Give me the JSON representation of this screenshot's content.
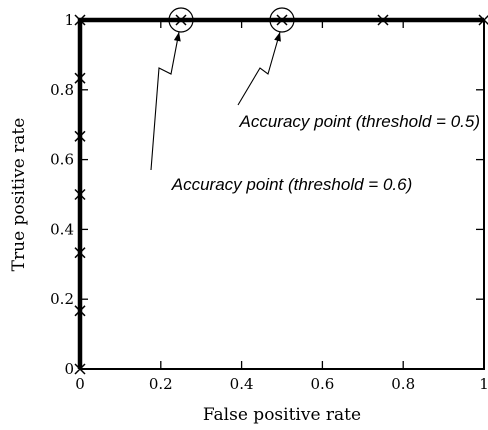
{
  "chart_data": {
    "type": "line",
    "title": "",
    "xlabel": "False positive rate",
    "ylabel": "True positive rate",
    "xlim": [
      0,
      1
    ],
    "ylim": [
      0,
      1
    ],
    "xticks": [
      "0",
      "0.2",
      "0.4",
      "0.6",
      "0.8",
      "1"
    ],
    "yticks": [
      "0",
      "0.2",
      "0.4",
      "0.6",
      "0.8",
      "1"
    ],
    "grid": false,
    "legend": "none",
    "series": [
      {
        "color": "#000000",
        "marker": "x",
        "x": [
          0,
          0,
          0,
          0,
          0,
          0,
          0,
          0.25,
          0.5,
          0.75,
          1
        ],
        "y": [
          0,
          0.1667,
          0.3333,
          0.5,
          0.6667,
          0.8333,
          1,
          1,
          1,
          1,
          1
        ]
      }
    ],
    "annotations": [
      {
        "text": "Accuracy point (threshold = 0.5)",
        "x": 0.5,
        "y": 1
      },
      {
        "text": "Accuracy point (threshold = 0.6)",
        "x": 0.25,
        "y": 1
      }
    ]
  }
}
